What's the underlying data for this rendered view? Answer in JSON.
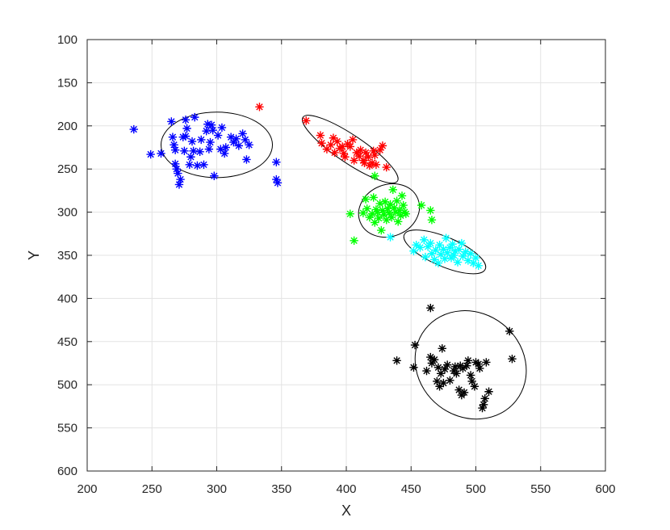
{
  "chart_data": {
    "type": "scatter",
    "title": "",
    "xlabel": "X",
    "ylabel": "Y",
    "xlim": [
      200,
      600
    ],
    "ylim": [
      100,
      600
    ],
    "y_reversed": true,
    "grid": true,
    "marker": "asterisk",
    "xticks": [
      200,
      250,
      300,
      350,
      400,
      450,
      500,
      550,
      600
    ],
    "yticks": [
      100,
      150,
      200,
      250,
      300,
      350,
      400,
      450,
      500,
      550,
      600
    ],
    "series": [
      {
        "color": "#0000ff",
        "points": [
          [
            236,
            204
          ],
          [
            249,
            233
          ],
          [
            257,
            232
          ],
          [
            265,
            195
          ],
          [
            266,
            213
          ],
          [
            267,
            222
          ],
          [
            268,
            228
          ],
          [
            268,
            244
          ],
          [
            269,
            250
          ],
          [
            270,
            255
          ],
          [
            271,
            268
          ],
          [
            272,
            262
          ],
          [
            274,
            213
          ],
          [
            275,
            229
          ],
          [
            276,
            193
          ],
          [
            276,
            212
          ],
          [
            277,
            203
          ],
          [
            279,
            245
          ],
          [
            280,
            236
          ],
          [
            281,
            218
          ],
          [
            282,
            229
          ],
          [
            283,
            190
          ],
          [
            285,
            246
          ],
          [
            287,
            230
          ],
          [
            288,
            216
          ],
          [
            290,
            245
          ],
          [
            292,
            206
          ],
          [
            293,
            198
          ],
          [
            294,
            227
          ],
          [
            295,
            219
          ],
          [
            296,
            199
          ],
          [
            297,
            205
          ],
          [
            298,
            258
          ],
          [
            301,
            211
          ],
          [
            303,
            227
          ],
          [
            304,
            202
          ],
          [
            306,
            232
          ],
          [
            307,
            225
          ],
          [
            311,
            213
          ],
          [
            313,
            219
          ],
          [
            315,
            215
          ],
          [
            317,
            223
          ],
          [
            320,
            209
          ],
          [
            322,
            216
          ],
          [
            323,
            239
          ],
          [
            325,
            222
          ],
          [
            346,
            242
          ],
          [
            346,
            262
          ],
          [
            347,
            266
          ]
        ],
        "ellipse": {
          "cx": 300,
          "cy": 222,
          "rx": 43,
          "ry": 38,
          "angle_deg": 0
        }
      },
      {
        "color": "#ff0000",
        "points": [
          [
            333,
            178
          ],
          [
            369,
            194
          ],
          [
            380,
            211
          ],
          [
            381,
            220
          ],
          [
            385,
            227
          ],
          [
            388,
            222
          ],
          [
            390,
            214
          ],
          [
            391,
            231
          ],
          [
            393,
            218
          ],
          [
            395,
            226
          ],
          [
            397,
            224
          ],
          [
            398,
            232
          ],
          [
            399,
            236
          ],
          [
            401,
            221
          ],
          [
            403,
            224
          ],
          [
            405,
            216
          ],
          [
            406,
            240
          ],
          [
            408,
            231
          ],
          [
            410,
            235
          ],
          [
            411,
            228
          ],
          [
            413,
            240
          ],
          [
            414,
            243
          ],
          [
            415,
            231
          ],
          [
            417,
            236
          ],
          [
            418,
            246
          ],
          [
            420,
            243
          ],
          [
            421,
            229
          ],
          [
            422,
            234
          ],
          [
            423,
            245
          ],
          [
            426,
            228
          ],
          [
            428,
            223
          ],
          [
            431,
            248
          ]
        ],
        "ellipse": {
          "cx": 403,
          "cy": 227,
          "rx": 44,
          "ry": 16,
          "angle_deg": 34
        }
      },
      {
        "color": "#00ff00",
        "points": [
          [
            403,
            302
          ],
          [
            406,
            333
          ],
          [
            413,
            301
          ],
          [
            415,
            285
          ],
          [
            416,
            296
          ],
          [
            418,
            306
          ],
          [
            420,
            302
          ],
          [
            421,
            283
          ],
          [
            422,
            312
          ],
          [
            423,
            297
          ],
          [
            424,
            300
          ],
          [
            425,
            307
          ],
          [
            426,
            290
          ],
          [
            427,
            321
          ],
          [
            428,
            298
          ],
          [
            429,
            303
          ],
          [
            430,
            288
          ],
          [
            431,
            309
          ],
          [
            432,
            296
          ],
          [
            433,
            301
          ],
          [
            434,
            291
          ],
          [
            435,
            306
          ],
          [
            436,
            274
          ],
          [
            437,
            295
          ],
          [
            438,
            300
          ],
          [
            439,
            287
          ],
          [
            440,
            311
          ],
          [
            441,
            298
          ],
          [
            442,
            304
          ],
          [
            443,
            281
          ],
          [
            444,
            292
          ],
          [
            445,
            300
          ],
          [
            446,
            302
          ],
          [
            458,
            292
          ],
          [
            465,
            298
          ],
          [
            466,
            309
          ],
          [
            422,
            258
          ]
        ],
        "ellipse": {
          "cx": 433,
          "cy": 298,
          "rx": 24,
          "ry": 30,
          "angle_deg": -22
        }
      },
      {
        "color": "#00ffff",
        "points": [
          [
            434,
            329
          ],
          [
            452,
            345
          ],
          [
            454,
            338
          ],
          [
            457,
            341
          ],
          [
            460,
            332
          ],
          [
            461,
            352
          ],
          [
            463,
            340
          ],
          [
            465,
            336
          ],
          [
            466,
            348
          ],
          [
            468,
            355
          ],
          [
            469,
            344
          ],
          [
            471,
            359
          ],
          [
            472,
            338
          ],
          [
            473,
            349
          ],
          [
            475,
            343
          ],
          [
            476,
            354
          ],
          [
            477,
            330
          ],
          [
            478,
            347
          ],
          [
            480,
            341
          ],
          [
            481,
            353
          ],
          [
            482,
            337
          ],
          [
            483,
            350
          ],
          [
            484,
            345
          ],
          [
            486,
            358
          ],
          [
            487,
            343
          ],
          [
            489,
            336
          ],
          [
            490,
            351
          ],
          [
            492,
            346
          ],
          [
            494,
            356
          ],
          [
            496,
            348
          ],
          [
            498,
            359
          ],
          [
            500,
            353
          ],
          [
            502,
            362
          ]
        ],
        "ellipse": {
          "cx": 476,
          "cy": 346,
          "rx": 34,
          "ry": 17,
          "angle_deg": 23
        }
      },
      {
        "color": "#000000",
        "points": [
          [
            465,
            411
          ],
          [
            439,
            472
          ],
          [
            452,
            480
          ],
          [
            453,
            454
          ],
          [
            462,
            484
          ],
          [
            465,
            468
          ],
          [
            466,
            475
          ],
          [
            468,
            471
          ],
          [
            470,
            496
          ],
          [
            471,
            480
          ],
          [
            472,
            502
          ],
          [
            473,
            487
          ],
          [
            474,
            458
          ],
          [
            475,
            498
          ],
          [
            476,
            482
          ],
          [
            478,
            477
          ],
          [
            480,
            495
          ],
          [
            483,
            484
          ],
          [
            484,
            479
          ],
          [
            485,
            487
          ],
          [
            487,
            506
          ],
          [
            488,
            478
          ],
          [
            489,
            512
          ],
          [
            490,
            481
          ],
          [
            491,
            509
          ],
          [
            493,
            478
          ],
          [
            494,
            472
          ],
          [
            496,
            489
          ],
          [
            497,
            496
          ],
          [
            499,
            502
          ],
          [
            500,
            474
          ],
          [
            502,
            476
          ],
          [
            503,
            481
          ],
          [
            505,
            527
          ],
          [
            506,
            523
          ],
          [
            507,
            516
          ],
          [
            508,
            474
          ],
          [
            510,
            508
          ],
          [
            526,
            438
          ],
          [
            528,
            470
          ]
        ],
        "ellipse": {
          "cx": 496,
          "cy": 477,
          "rx": 40,
          "ry": 67,
          "angle_deg": -52
        }
      }
    ]
  }
}
